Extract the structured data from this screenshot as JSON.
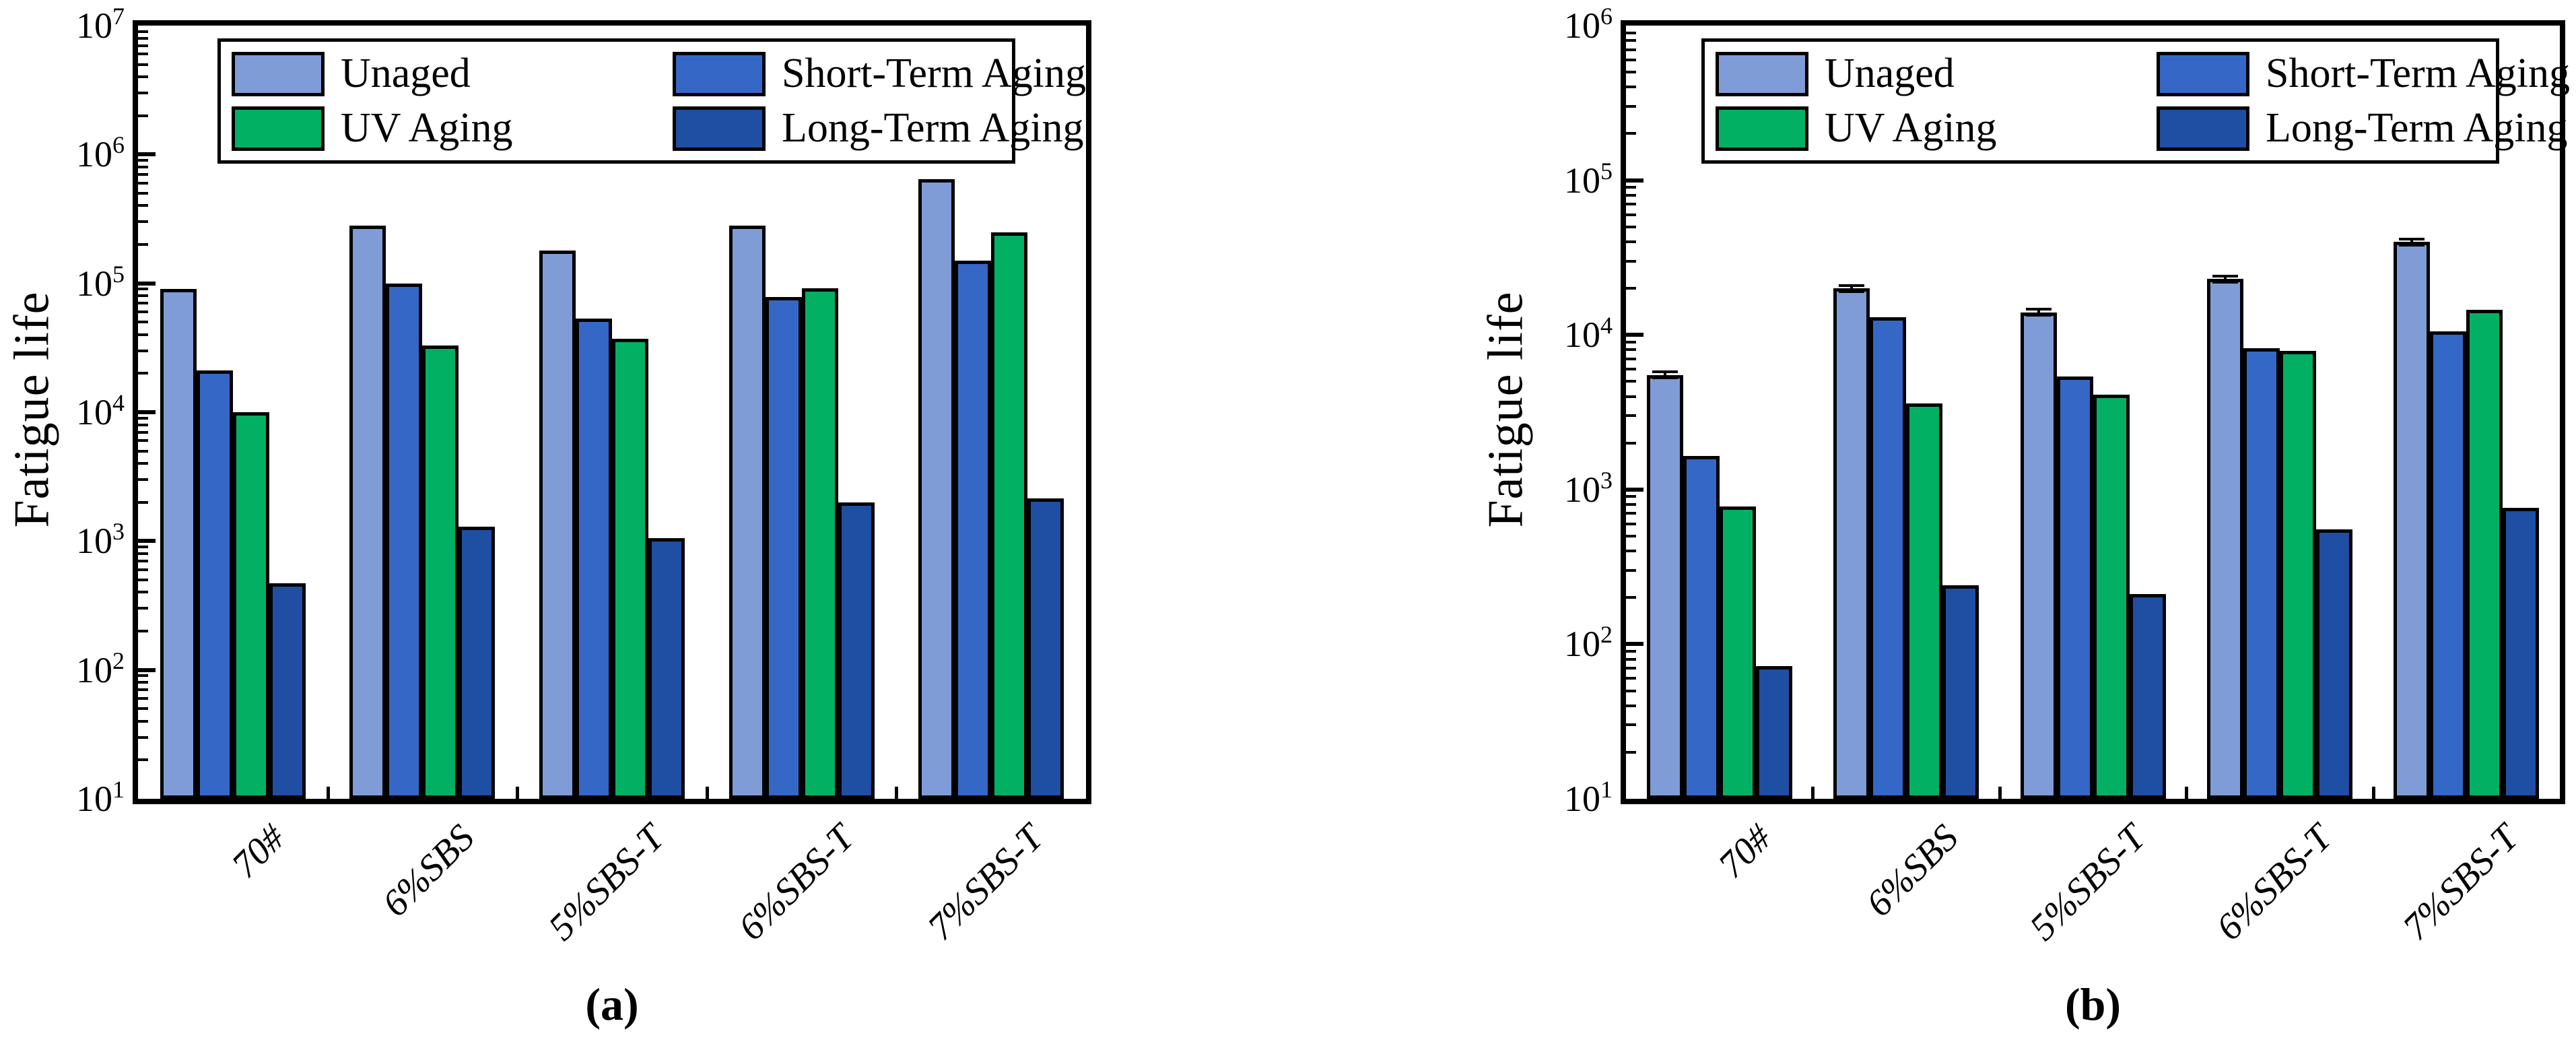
{
  "colors": {
    "unaged": "#7F9CD6",
    "short_term": "#3568C6",
    "uv": "#02B064",
    "long_term": "#1F4FA3",
    "bar_outline": "#000000"
  },
  "legend": {
    "items": [
      {
        "label": "Unaged",
        "color_key": "unaged"
      },
      {
        "label": "Short-Term Aging",
        "color_key": "short_term"
      },
      {
        "label": "UV Aging",
        "color_key": "uv"
      },
      {
        "label": "Long-Term Aging",
        "color_key": "long_term"
      }
    ]
  },
  "chart_data": [
    {
      "type": "bar",
      "panel_caption": "(a)",
      "ylabel": "Fatigue life",
      "yscale": "log",
      "ylim": [
        10,
        10000000
      ],
      "y_tick_exponents": [
        1,
        2,
        3,
        4,
        5,
        6,
        7
      ],
      "grid": false,
      "legend_position": "top-inside",
      "categories": [
        "70#",
        "6%SBS",
        "5%SBS-T",
        "6%SBS-T",
        "7%SBS-T"
      ],
      "series": [
        {
          "name": "Unaged",
          "color_key": "unaged",
          "values": [
            90000,
            280000,
            180000,
            280000,
            640000
          ]
        },
        {
          "name": "Short-Term Aging",
          "color_key": "short_term",
          "values": [
            21000,
            100000,
            53000,
            78000,
            150000
          ]
        },
        {
          "name": "UV Aging",
          "color_key": "uv",
          "values": [
            10000,
            33000,
            37000,
            92000,
            250000
          ]
        },
        {
          "name": "Long-Term Aging",
          "color_key": "long_term",
          "values": [
            470,
            1300,
            1050,
            2000,
            2150
          ]
        }
      ]
    },
    {
      "type": "bar",
      "panel_caption": "(b)",
      "ylabel": "Fatigue life",
      "yscale": "log",
      "ylim": [
        10,
        1000000
      ],
      "y_tick_exponents": [
        1,
        2,
        3,
        4,
        5,
        6
      ],
      "grid": false,
      "legend_position": "top-inside",
      "categories": [
        "70#",
        "6%SBS",
        "5%SBS-T",
        "6%SBS-T",
        "7%SBS-T"
      ],
      "series": [
        {
          "name": "Unaged",
          "color_key": "unaged",
          "values": [
            5500,
            20000,
            14000,
            23000,
            40000
          ],
          "errors": [
            250,
            900,
            600,
            1000,
            1800
          ]
        },
        {
          "name": "Short-Term Aging",
          "color_key": "short_term",
          "values": [
            1650,
            13000,
            5400,
            8200,
            10500
          ]
        },
        {
          "name": "UV Aging",
          "color_key": "uv",
          "values": [
            780,
            3600,
            4100,
            7900,
            14500
          ]
        },
        {
          "name": "Long-Term Aging",
          "color_key": "long_term",
          "values": [
            72,
            240,
            210,
            550,
            760
          ]
        }
      ]
    }
  ]
}
